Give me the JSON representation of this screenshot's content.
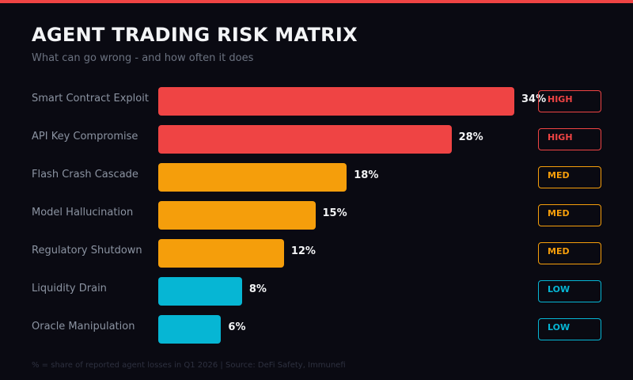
{
  "title": "AGENT TRADING RISK MATRIX",
  "subtitle": "What can go wrong - and how often it does",
  "footnote": "% = share of reported agent losses in Q1 2026 | Source: DeFi Safety, Immunefi",
  "colors": {
    "HIGH": "#ef4444",
    "MED": "#f59e0b",
    "LOW": "#06b6d4",
    "background": "#0a0a12"
  },
  "chart_data": {
    "type": "bar",
    "orientation": "horizontal",
    "categories": [
      "Smart Contract Exploit",
      "API Key Compromise",
      "Flash Crash Cascade",
      "Model Hallucination",
      "Regulatory Shutdown",
      "Liquidity Drain",
      "Oracle Manipulation"
    ],
    "values": [
      34,
      28,
      18,
      15,
      12,
      8,
      6
    ],
    "value_labels": [
      "34%",
      "28%",
      "18%",
      "15%",
      "12%",
      "8%",
      "6%"
    ],
    "severity": [
      "HIGH",
      "HIGH",
      "MED",
      "MED",
      "MED",
      "LOW",
      "LOW"
    ],
    "unit": "%",
    "grid": false
  }
}
